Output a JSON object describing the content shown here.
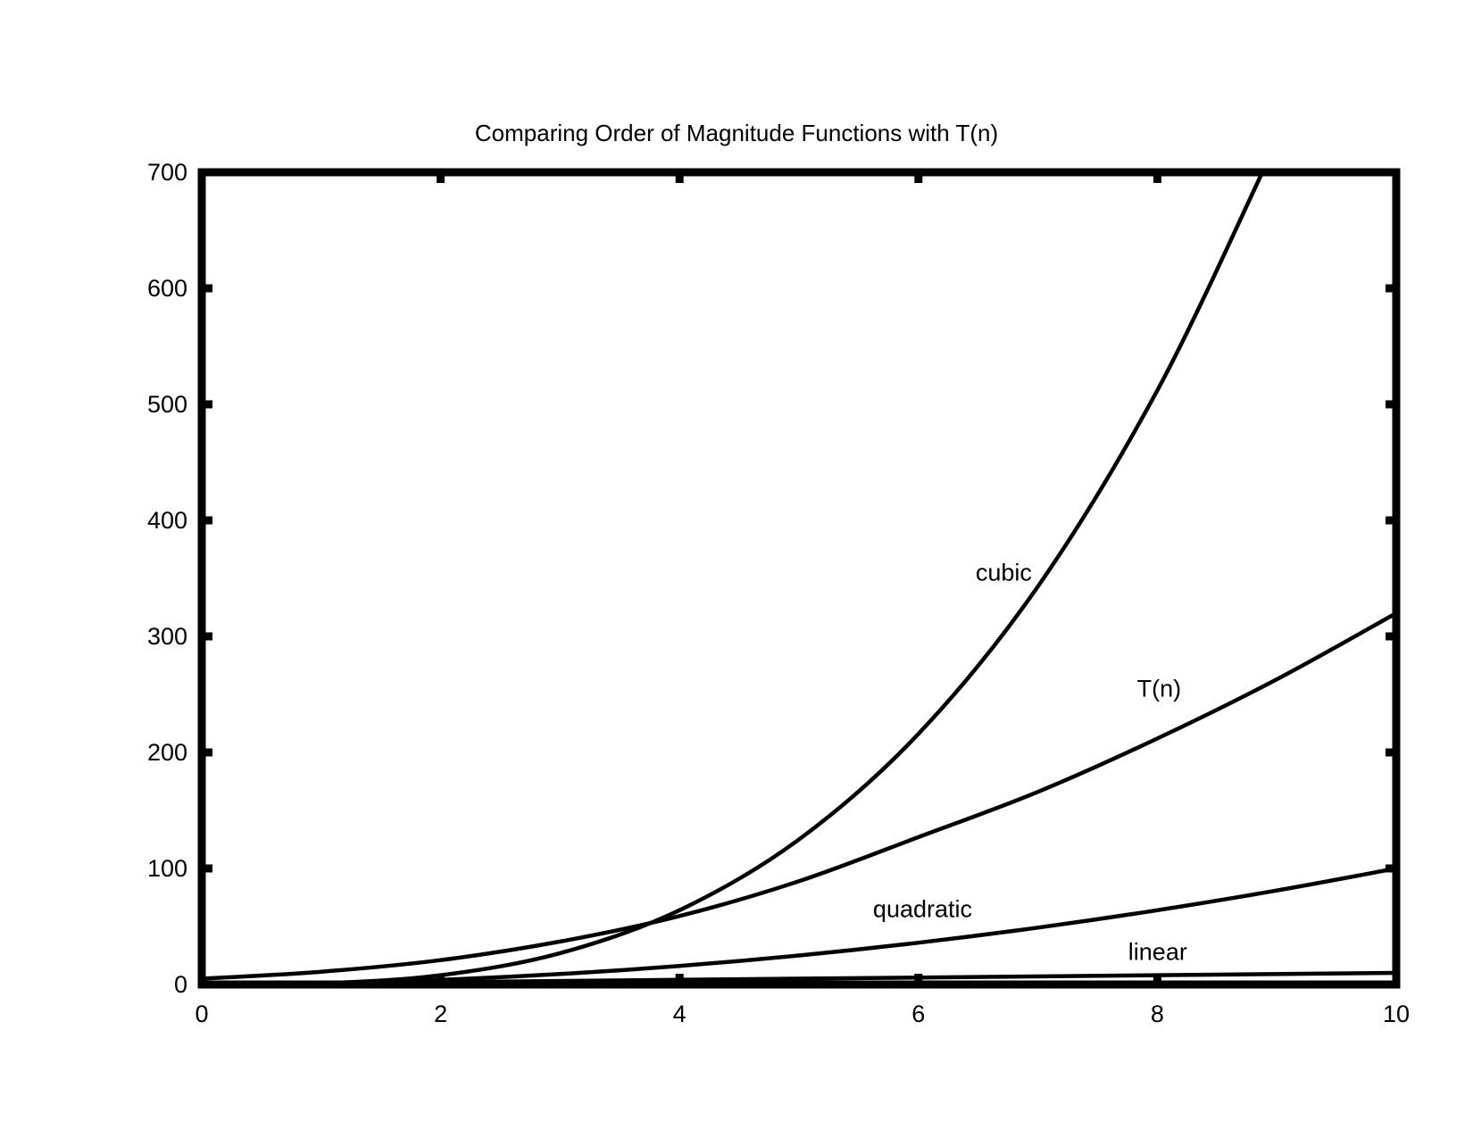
{
  "chart_data": {
    "type": "line",
    "title": "Comparing Order of Magnitude Functions with T(n)",
    "xlabel": "",
    "ylabel": "",
    "xlim": [
      0,
      10
    ],
    "ylim": [
      0,
      700
    ],
    "x_ticks": [
      "0",
      "2",
      "4",
      "6",
      "8",
      "10"
    ],
    "y_ticks": [
      "0",
      "100",
      "200",
      "300",
      "400",
      "500",
      "600",
      "700"
    ],
    "grid": false,
    "line_color": "#000000",
    "series": [
      {
        "name": "cubic",
        "x": [
          0,
          1,
          2,
          3,
          4,
          5,
          6,
          7,
          8,
          8.88
        ],
        "y": [
          0,
          1,
          8,
          27,
          64,
          125,
          216,
          343,
          512,
          700
        ]
      },
      {
        "name": "T(n)",
        "x": [
          0,
          1,
          2,
          3,
          4,
          5,
          6,
          7,
          8,
          9,
          10
        ],
        "y": [
          5,
          11,
          21,
          37,
          59,
          89,
          127,
          166,
          212,
          263,
          320
        ]
      },
      {
        "name": "quadratic",
        "x": [
          0,
          1,
          2,
          3,
          4,
          5,
          6,
          7,
          8,
          9,
          10
        ],
        "y": [
          0,
          1,
          4,
          9,
          16,
          25,
          36,
          49,
          64,
          81,
          100
        ]
      },
      {
        "name": "linear",
        "x": [
          0,
          10
        ],
        "y": [
          0,
          10
        ]
      }
    ],
    "annotations": [
      {
        "text": "cubic",
        "x": 6.95,
        "y": 348
      },
      {
        "text": "T(n)",
        "x": 8.2,
        "y": 248
      },
      {
        "text": "quadratic",
        "x": 6.45,
        "y": 58
      },
      {
        "text": "linear",
        "x": 8.25,
        "y": 21
      }
    ]
  }
}
